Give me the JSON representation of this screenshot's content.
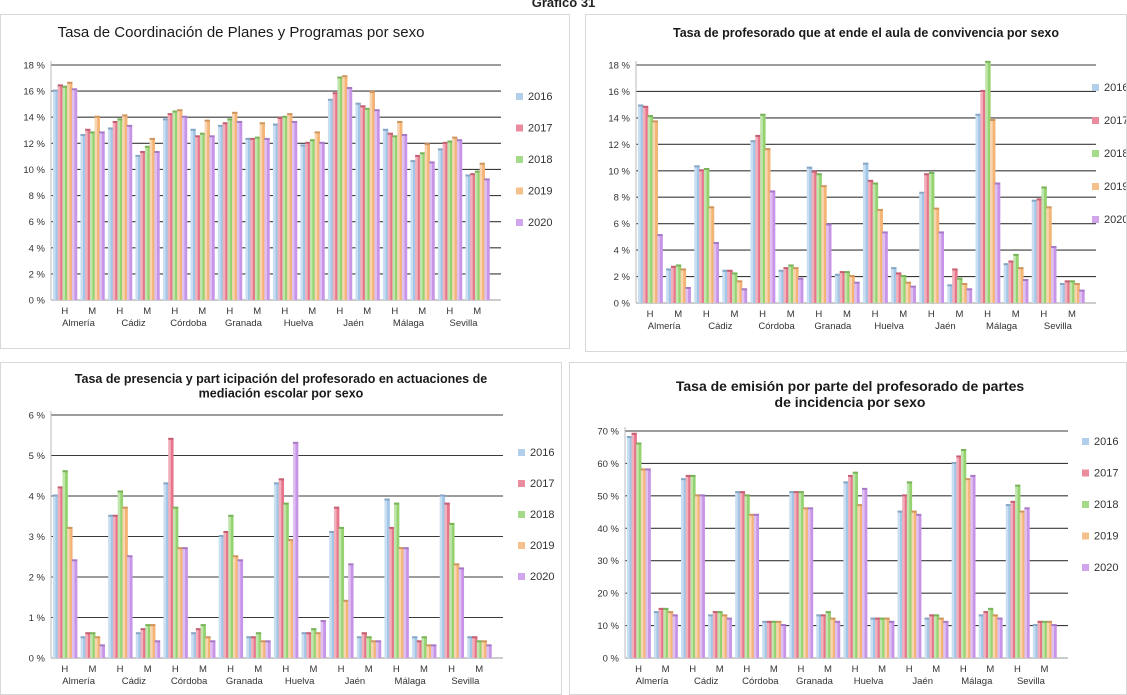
{
  "page_title": "Gráfico 31",
  "colors": {
    "2016": "#9dc3e6",
    "2017": "#e66f86",
    "2018": "#8fd16a",
    "2019": "#f2b06e",
    "2020": "#c58ee6"
  },
  "chart_data": [
    {
      "type": "bar",
      "title": "Tasa de Coordinación de Planes y Programas por sexo",
      "provinces": [
        "Almería",
        "Cádiz",
        "Córdoba",
        "Granada",
        "Huelva",
        "Jaén",
        "Málaga",
        "Sevilla"
      ],
      "sexes": [
        "H",
        "M"
      ],
      "categories": [
        "H",
        "M",
        "H",
        "M",
        "H",
        "M",
        "H",
        "M",
        "H",
        "M",
        "H",
        "M",
        "H",
        "M",
        "H",
        "M"
      ],
      "ylim": [
        0,
        18
      ],
      "yticks": [
        0,
        2,
        4,
        6,
        8,
        10,
        12,
        14,
        16,
        18
      ],
      "yunit": "%",
      "series": [
        {
          "name": "2016",
          "values": [
            16.0,
            12.6,
            13.1,
            11.0,
            13.8,
            13.0,
            13.3,
            12.3,
            13.4,
            11.8,
            15.3,
            15.0,
            13.0,
            10.6,
            11.5,
            9.5
          ]
        },
        {
          "name": "2017",
          "values": [
            16.4,
            13.0,
            13.6,
            11.3,
            14.2,
            12.5,
            13.5,
            12.3,
            13.9,
            12.0,
            15.8,
            14.8,
            12.7,
            11.0,
            12.0,
            9.6
          ]
        },
        {
          "name": "2018",
          "values": [
            16.3,
            12.8,
            13.8,
            11.7,
            14.4,
            12.7,
            13.8,
            12.4,
            14.0,
            12.2,
            17.0,
            14.6,
            12.5,
            11.2,
            12.1,
            9.8
          ]
        },
        {
          "name": "2019",
          "values": [
            16.6,
            14.0,
            14.1,
            12.3,
            14.5,
            13.7,
            14.3,
            13.5,
            14.2,
            12.8,
            17.1,
            15.9,
            13.6,
            11.9,
            12.4,
            10.4
          ]
        },
        {
          "name": "2020",
          "values": [
            16.1,
            12.8,
            13.3,
            11.3,
            14.0,
            12.5,
            13.6,
            12.3,
            13.6,
            12.0,
            16.2,
            14.5,
            12.6,
            10.5,
            12.2,
            9.2
          ]
        }
      ]
    },
    {
      "type": "bar",
      "title": "Tasa de profesorado que at ende el aula de convivencia por sexo",
      "provinces": [
        "Almería",
        "Cádiz",
        "Córdoba",
        "Granada",
        "Huelva",
        "Jaén",
        "Málaga",
        "Sevilla"
      ],
      "sexes": [
        "H",
        "M"
      ],
      "categories": [
        "H",
        "M",
        "H",
        "M",
        "H",
        "M",
        "H",
        "M",
        "H",
        "M",
        "H",
        "M",
        "H",
        "M",
        "H",
        "M"
      ],
      "ylim": [
        0,
        18
      ],
      "yticks": [
        0,
        2,
        4,
        6,
        8,
        10,
        12,
        14,
        16,
        18
      ],
      "yunit": "%",
      "series": [
        {
          "name": "2016",
          "values": [
            14.9,
            2.5,
            10.3,
            2.4,
            12.2,
            2.4,
            10.2,
            2.1,
            10.5,
            2.6,
            8.3,
            1.3,
            14.2,
            2.9,
            7.7,
            1.4
          ]
        },
        {
          "name": "2017",
          "values": [
            14.8,
            2.7,
            10.0,
            2.4,
            12.6,
            2.6,
            9.9,
            2.3,
            9.2,
            2.2,
            9.7,
            2.5,
            16.0,
            3.1,
            7.8,
            1.6
          ]
        },
        {
          "name": "2018",
          "values": [
            14.1,
            2.8,
            10.1,
            2.2,
            14.2,
            2.8,
            9.7,
            2.3,
            9.0,
            2.0,
            9.8,
            1.8,
            18.2,
            3.6,
            8.7,
            1.6
          ]
        },
        {
          "name": "2019",
          "values": [
            13.7,
            2.5,
            7.2,
            1.6,
            11.6,
            2.6,
            8.8,
            2.0,
            7.0,
            1.5,
            7.1,
            1.4,
            13.8,
            2.6,
            7.2,
            1.4
          ]
        },
        {
          "name": "2020",
          "values": [
            5.1,
            1.1,
            4.5,
            1.0,
            8.4,
            1.8,
            5.9,
            1.5,
            5.3,
            1.2,
            5.3,
            1.0,
            9.0,
            1.7,
            4.2,
            0.9
          ]
        }
      ]
    },
    {
      "type": "bar",
      "title": "Tasa de presencia y part icipación del profesorado en actuaciones de",
      "subtitle": "mediación escolar por sexo",
      "provinces": [
        "Almería",
        "Cádiz",
        "Córdoba",
        "Granada",
        "Huelva",
        "Jaén",
        "Málaga",
        "Sevilla"
      ],
      "sexes": [
        "H",
        "M"
      ],
      "categories": [
        "H",
        "M",
        "H",
        "M",
        "H",
        "M",
        "H",
        "M",
        "H",
        "M",
        "H",
        "M",
        "H",
        "M",
        "H",
        "M"
      ],
      "ylim": [
        0,
        6
      ],
      "yticks": [
        0,
        1,
        2,
        3,
        4,
        5,
        6
      ],
      "yunit": "%",
      "series": [
        {
          "name": "2016",
          "values": [
            4.0,
            0.5,
            3.5,
            0.6,
            4.3,
            0.6,
            3.0,
            0.5,
            4.3,
            0.6,
            3.1,
            0.5,
            3.9,
            0.5,
            4.0,
            0.5
          ]
        },
        {
          "name": "2017",
          "values": [
            4.2,
            0.6,
            3.5,
            0.7,
            5.4,
            0.7,
            3.1,
            0.5,
            4.4,
            0.6,
            3.7,
            0.6,
            3.2,
            0.4,
            3.8,
            0.5
          ]
        },
        {
          "name": "2018",
          "values": [
            4.6,
            0.6,
            4.1,
            0.8,
            3.7,
            0.8,
            3.5,
            0.6,
            3.8,
            0.7,
            3.2,
            0.5,
            3.8,
            0.5,
            3.3,
            0.4
          ]
        },
        {
          "name": "2019",
          "values": [
            3.2,
            0.5,
            3.7,
            0.8,
            2.7,
            0.5,
            2.5,
            0.4,
            2.9,
            0.6,
            1.4,
            0.4,
            2.7,
            0.3,
            2.3,
            0.4
          ]
        },
        {
          "name": "2020",
          "values": [
            2.4,
            0.3,
            2.5,
            0.4,
            2.7,
            0.4,
            2.4,
            0.4,
            5.3,
            0.9,
            2.3,
            0.4,
            2.7,
            0.3,
            2.2,
            0.3
          ]
        }
      ]
    },
    {
      "type": "bar",
      "title": "Tasa de emisión por parte del profesorado de partes",
      "subtitle": "de incidencia por sexo",
      "provinces": [
        "Almería",
        "Cádiz",
        "Córdoba",
        "Granada",
        "Huelva",
        "Jaén",
        "Málaga",
        "Sevilla"
      ],
      "sexes": [
        "H",
        "M"
      ],
      "categories": [
        "H",
        "M",
        "H",
        "M",
        "H",
        "M",
        "H",
        "M",
        "H",
        "M",
        "H",
        "M",
        "H",
        "M",
        "H",
        "M"
      ],
      "ylim": [
        0,
        70
      ],
      "yticks": [
        0,
        10,
        20,
        30,
        40,
        50,
        60,
        70
      ],
      "yunit": "%",
      "series": [
        {
          "name": "2016",
          "values": [
            68,
            14,
            55,
            13,
            51,
            11,
            51,
            13,
            54,
            12,
            45,
            12,
            60,
            13,
            47,
            10
          ]
        },
        {
          "name": "2017",
          "values": [
            69,
            15,
            56,
            14,
            51,
            11,
            51,
            13,
            56,
            12,
            50,
            13,
            62,
            14,
            48,
            11
          ]
        },
        {
          "name": "2018",
          "values": [
            66,
            15,
            56,
            14,
            50,
            11,
            51,
            14,
            57,
            12,
            54,
            13,
            64,
            15,
            53,
            11
          ]
        },
        {
          "name": "2019",
          "values": [
            58,
            14,
            50,
            13,
            44,
            11,
            46,
            12,
            47,
            12,
            45,
            12,
            55,
            13,
            45,
            11
          ]
        },
        {
          "name": "2020",
          "values": [
            58,
            13,
            50,
            12,
            44,
            10,
            46,
            11,
            52,
            11,
            44,
            11,
            56,
            12,
            46,
            10
          ]
        }
      ]
    }
  ]
}
